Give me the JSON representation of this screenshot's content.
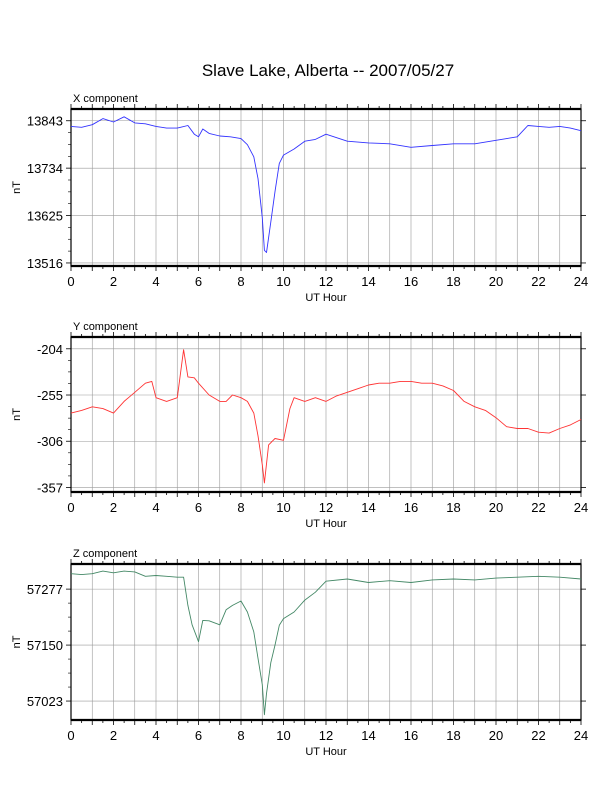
{
  "title": "Slave Lake, Alberta -- 2007/05/27",
  "chart_data": [
    {
      "type": "line",
      "panel_label": "X component",
      "xlabel": "UT Hour",
      "ylabel": "nT",
      "xlim": [
        0,
        24
      ],
      "ylim": [
        13509,
        13870
      ],
      "xticks": [
        0,
        2,
        4,
        6,
        8,
        10,
        12,
        14,
        16,
        18,
        20,
        22,
        24
      ],
      "yticks": [
        13516,
        13625,
        13734,
        13843
      ],
      "grid": true,
      "color": "#3333ff",
      "x": [
        0,
        0.5,
        1,
        1.5,
        2,
        2.5,
        3,
        3.5,
        4,
        4.5,
        5,
        5.5,
        5.8,
        6,
        6.2,
        6.5,
        7,
        7.5,
        8,
        8.3,
        8.6,
        8.8,
        9,
        9.1,
        9.2,
        9.4,
        9.6,
        9.8,
        10,
        10.5,
        11,
        11.5,
        12,
        13,
        14,
        15,
        16,
        17,
        18,
        19,
        20,
        21,
        21.5,
        22,
        22.5,
        23,
        23.5,
        24
      ],
      "y": [
        13830,
        13828,
        13834,
        13848,
        13840,
        13852,
        13838,
        13836,
        13830,
        13826,
        13826,
        13832,
        13812,
        13806,
        13824,
        13814,
        13808,
        13806,
        13802,
        13788,
        13760,
        13710,
        13620,
        13545,
        13540,
        13610,
        13680,
        13745,
        13764,
        13778,
        13796,
        13800,
        13812,
        13796,
        13792,
        13790,
        13782,
        13786,
        13790,
        13790,
        13798,
        13806,
        13832,
        13830,
        13828,
        13830,
        13826,
        13820
      ]
    },
    {
      "type": "line",
      "panel_label": "Y component",
      "xlabel": "UT Hour",
      "ylabel": "nT",
      "xlim": [
        0,
        24
      ],
      "ylim": [
        -362,
        -191
      ],
      "xticks": [
        0,
        2,
        4,
        6,
        8,
        10,
        12,
        14,
        16,
        18,
        20,
        22,
        24
      ],
      "yticks": [
        -204,
        -255,
        -306,
        -357
      ],
      "grid": true,
      "color": "#ff3333",
      "x": [
        0,
        0.5,
        1,
        1.5,
        2,
        2.5,
        3,
        3.5,
        3.8,
        4,
        4.5,
        5,
        5.3,
        5.5,
        5.8,
        6,
        6.5,
        7,
        7.3,
        7.6,
        8,
        8.3,
        8.6,
        8.8,
        9,
        9.1,
        9.3,
        9.6,
        10,
        10.3,
        10.5,
        11,
        11.5,
        12,
        12.5,
        13,
        13.5,
        14,
        14.5,
        15,
        15.5,
        16,
        16.5,
        17,
        17.5,
        18,
        18.5,
        19,
        19.5,
        20,
        20.5,
        21,
        21.5,
        22,
        22.5,
        23,
        23.5,
        24
      ],
      "y": [
        -275,
        -272,
        -268,
        -270,
        -275,
        -262,
        -252,
        -242,
        -240,
        -258,
        -262,
        -258,
        -205,
        -235,
        -236,
        -242,
        -255,
        -262,
        -262,
        -255,
        -258,
        -262,
        -275,
        -300,
        -332,
        -352,
        -310,
        -303,
        -305,
        -270,
        -258,
        -262,
        -258,
        -262,
        -256,
        -252,
        -248,
        -244,
        -242,
        -242,
        -240,
        -240,
        -242,
        -242,
        -245,
        -250,
        -262,
        -268,
        -272,
        -280,
        -290,
        -292,
        -292,
        -296,
        -297,
        -292,
        -288,
        -282
      ]
    },
    {
      "type": "line",
      "panel_label": "Z component",
      "xlabel": "UT Hour",
      "ylabel": "nT",
      "xlim": [
        0,
        24
      ],
      "ylim": [
        56980,
        57334
      ],
      "xticks": [
        0,
        2,
        4,
        6,
        8,
        10,
        12,
        14,
        16,
        18,
        20,
        22,
        24
      ],
      "yticks": [
        57023,
        57150,
        57277
      ],
      "grid": true,
      "color": "#448866",
      "x": [
        0,
        0.5,
        1,
        1.5,
        2,
        2.5,
        3,
        3.5,
        4,
        4.5,
        5,
        5.3,
        5.5,
        5.7,
        6,
        6.2,
        6.5,
        7,
        7.3,
        7.6,
        8,
        8.3,
        8.6,
        8.8,
        9,
        9.1,
        9.2,
        9.4,
        9.6,
        9.8,
        10,
        10.5,
        11,
        11.5,
        12,
        13,
        14,
        15,
        16,
        17,
        18,
        19,
        20,
        21,
        22,
        23,
        24
      ],
      "y": [
        57312,
        57310,
        57312,
        57318,
        57314,
        57318,
        57316,
        57306,
        57308,
        57306,
        57304,
        57304,
        57240,
        57196,
        57158,
        57206,
        57205,
        57196,
        57230,
        57240,
        57250,
        57225,
        57180,
        57120,
        57060,
        56992,
        57040,
        57110,
        57150,
        57195,
        57210,
        57225,
        57252,
        57270,
        57295,
        57300,
        57292,
        57296,
        57292,
        57298,
        57300,
        57298,
        57302,
        57304,
        57306,
        57304,
        57300
      ]
    }
  ]
}
